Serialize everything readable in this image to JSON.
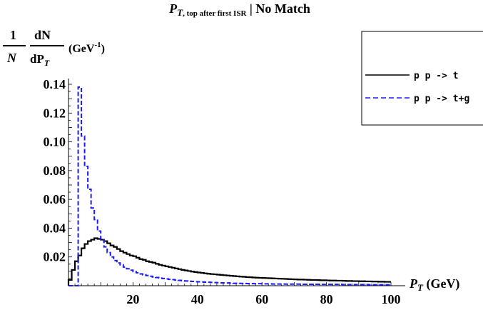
{
  "chart_data": {
    "type": "line",
    "title": {
      "main": "P",
      "sub": "T",
      "subscript_rest": ", top after first ISR",
      "suffix": " | No Match"
    },
    "ylabel": {
      "numerator_left": "1",
      "numerator_right": "dN",
      "denominator_left": "N",
      "denominator_right": "dP",
      "denominator_sub": "T",
      "units": "(GeV",
      "units_sup": "-1",
      "units_close": ")"
    },
    "xlabel": {
      "main": "P",
      "sub": "T",
      "units": " (GeV)"
    },
    "xlim": [
      0,
      100
    ],
    "ylim": [
      0,
      0.14
    ],
    "xticks": [
      20,
      40,
      60,
      80,
      100
    ],
    "xtick_labels": [
      "20",
      "40",
      "60",
      "80",
      "100"
    ],
    "yticks": [
      0.02,
      0.04,
      0.06,
      0.08,
      0.1,
      0.12,
      0.14
    ],
    "ytick_labels": [
      "0.02",
      "0.04",
      "0.06",
      "0.08",
      "0.10",
      "0.12",
      "0.14"
    ],
    "grid": false,
    "legend_position": "top-right",
    "bin_width": 1,
    "series": [
      {
        "name": "p p -> t",
        "color": "#000000",
        "dash": "solid",
        "values": [
          0.004,
          0.011,
          0.017,
          0.021,
          0.026,
          0.029,
          0.031,
          0.032,
          0.033,
          0.0325,
          0.032,
          0.031,
          0.0295,
          0.028,
          0.027,
          0.0255,
          0.024,
          0.023,
          0.022,
          0.021,
          0.0205,
          0.0195,
          0.0185,
          0.018,
          0.017,
          0.0165,
          0.016,
          0.0152,
          0.0145,
          0.014,
          0.0135,
          0.013,
          0.0125,
          0.012,
          0.0115,
          0.011,
          0.0106,
          0.0102,
          0.0098,
          0.0095,
          0.0092,
          0.0089,
          0.0086,
          0.0083,
          0.0081,
          0.0079,
          0.0077,
          0.0075,
          0.0073,
          0.0071,
          0.0069,
          0.0067,
          0.0065,
          0.0063,
          0.0062,
          0.006,
          0.0059,
          0.0057,
          0.0056,
          0.0055,
          0.0054,
          0.0053,
          0.0052,
          0.0051,
          0.005,
          0.0049,
          0.0048,
          0.0047,
          0.0046,
          0.0045,
          0.0044,
          0.0043,
          0.0043,
          0.0042,
          0.0041,
          0.004,
          0.004,
          0.0039,
          0.0038,
          0.0038,
          0.0037,
          0.0036,
          0.0036,
          0.0035,
          0.0035,
          0.0034,
          0.0033,
          0.0033,
          0.0032,
          0.0032,
          0.0031,
          0.0031,
          0.003,
          0.003,
          0.0029,
          0.0029,
          0.0028,
          0.0028,
          0.0027,
          0.0027
        ]
      },
      {
        "name": "p p -> t+g",
        "color": "#1a1aff",
        "dash": "dashed",
        "values": [
          0,
          0,
          0,
          0.138,
          0.104,
          0.083,
          0.067,
          0.054,
          0.046,
          0.038,
          0.032,
          0.027,
          0.023,
          0.02,
          0.0175,
          0.0158,
          0.0145,
          0.013,
          0.0118,
          0.0108,
          0.0098,
          0.009,
          0.0082,
          0.0076,
          0.0071,
          0.0066,
          0.0061,
          0.0057,
          0.0053,
          0.005,
          0.0047,
          0.0044,
          0.0042,
          0.0039,
          0.0037,
          0.0035,
          0.0033,
          0.0031,
          0.003,
          0.0028,
          0.0027,
          0.0026,
          0.0025,
          0.0024,
          0.0023,
          0.0022,
          0.0021,
          0.002,
          0.0019,
          0.0019,
          0.0018,
          0.0017,
          0.0017,
          0.0016,
          0.0016,
          0.0015,
          0.0015,
          0.0014,
          0.0014,
          0.0014,
          0.0013,
          0.0013,
          0.0013,
          0.0012,
          0.0012,
          0.0012,
          0.0012,
          0.0011,
          0.0011,
          0.0011,
          0.0011,
          0.0011,
          0.001,
          0.001,
          0.001,
          0.001,
          0.001,
          0.001,
          0.0009,
          0.0009,
          0.0009,
          0.0009,
          0.0009,
          0.0009,
          0.0009,
          0.0008,
          0.0008,
          0.0008,
          0.0008,
          0.0008,
          0.0008,
          0.0008,
          0.0008,
          0.0007,
          0.0007,
          0.0007,
          0.0007,
          0.0007,
          0.0007,
          0.0007
        ]
      }
    ]
  }
}
